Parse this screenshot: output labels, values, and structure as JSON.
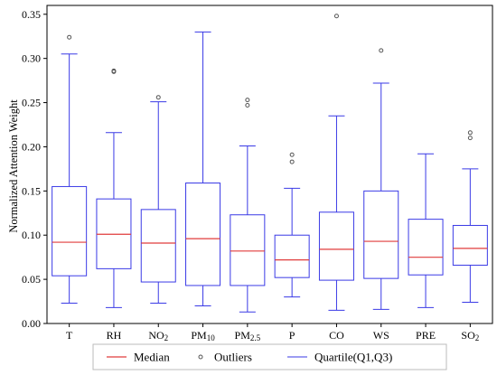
{
  "chart_data": {
    "type": "box",
    "title": "",
    "xlabel": "",
    "ylabel": "Normalized Attention Weight",
    "ylim": [
      0,
      0.36
    ],
    "yticks": [
      0.0,
      0.05,
      0.1,
      0.15,
      0.2,
      0.25,
      0.3,
      0.35
    ],
    "ytick_labels": [
      "0.00",
      "0.05",
      "0.10",
      "0.15",
      "0.20",
      "0.25",
      "0.30",
      "0.35"
    ],
    "grid": false,
    "legend_position": "bottom",
    "colors": {
      "box": "#3a3ae6",
      "median": "#e03c3c",
      "outlier": "#555555"
    },
    "categories": [
      {
        "base": "T",
        "sub": ""
      },
      {
        "base": "RH",
        "sub": ""
      },
      {
        "base": "NO",
        "sub": "2"
      },
      {
        "base": "PM",
        "sub": "10"
      },
      {
        "base": "PM",
        "sub": "2.5"
      },
      {
        "base": "P",
        "sub": ""
      },
      {
        "base": "CO",
        "sub": ""
      },
      {
        "base": "WS",
        "sub": ""
      },
      {
        "base": "PRE",
        "sub": ""
      },
      {
        "base": "SO",
        "sub": "2"
      }
    ],
    "boxes": [
      {
        "whislo": 0.023,
        "q1": 0.054,
        "med": 0.092,
        "q3": 0.155,
        "whishi": 0.305,
        "fliers": [
          0.324
        ]
      },
      {
        "whislo": 0.018,
        "q1": 0.062,
        "med": 0.101,
        "q3": 0.141,
        "whishi": 0.216,
        "fliers": [
          0.285,
          0.286
        ]
      },
      {
        "whislo": 0.023,
        "q1": 0.047,
        "med": 0.091,
        "q3": 0.129,
        "whishi": 0.251,
        "fliers": [
          0.256
        ]
      },
      {
        "whislo": 0.02,
        "q1": 0.043,
        "med": 0.096,
        "q3": 0.159,
        "whishi": 0.33,
        "fliers": []
      },
      {
        "whislo": 0.013,
        "q1": 0.043,
        "med": 0.082,
        "q3": 0.123,
        "whishi": 0.201,
        "fliers": [
          0.247,
          0.253
        ]
      },
      {
        "whislo": 0.03,
        "q1": 0.052,
        "med": 0.072,
        "q3": 0.1,
        "whishi": 0.153,
        "fliers": [
          0.183,
          0.191
        ]
      },
      {
        "whislo": 0.015,
        "q1": 0.049,
        "med": 0.084,
        "q3": 0.126,
        "whishi": 0.235,
        "fliers": [
          0.348
        ]
      },
      {
        "whislo": 0.016,
        "q1": 0.051,
        "med": 0.093,
        "q3": 0.15,
        "whishi": 0.272,
        "fliers": [
          0.309
        ]
      },
      {
        "whislo": 0.018,
        "q1": 0.055,
        "med": 0.075,
        "q3": 0.118,
        "whishi": 0.192,
        "fliers": []
      },
      {
        "whislo": 0.024,
        "q1": 0.066,
        "med": 0.085,
        "q3": 0.111,
        "whishi": 0.175,
        "fliers": [
          0.21,
          0.216
        ]
      }
    ],
    "legend": [
      {
        "type": "line",
        "label": "Median"
      },
      {
        "type": "marker",
        "label": "Outliers"
      },
      {
        "type": "line-blue",
        "label": "Quartile(Q1,Q3)"
      }
    ]
  }
}
